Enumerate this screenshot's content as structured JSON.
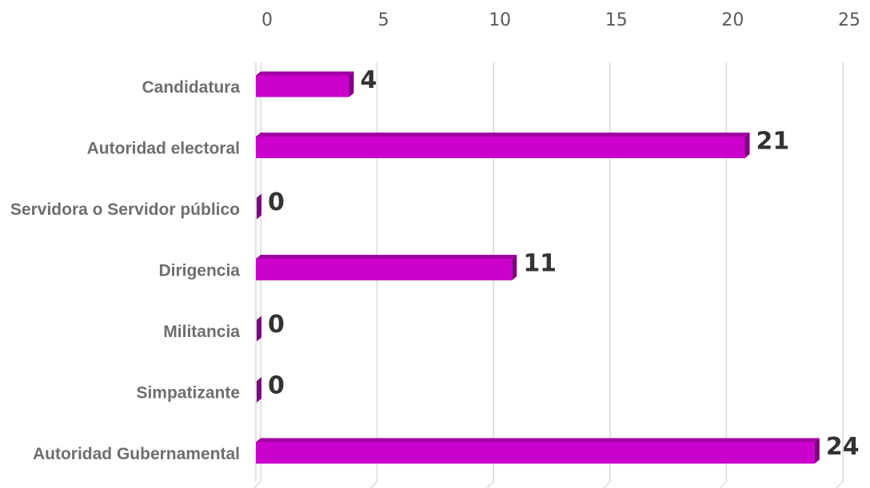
{
  "chart_data": {
    "type": "bar",
    "orientation": "horizontal",
    "title": "",
    "xlabel": "",
    "ylabel": "",
    "categories": [
      "Candidatura",
      "Autoridad electoral",
      "Servidora o Servidor público",
      "Dirigencia",
      "Militancia",
      "Simpatizante",
      "Autoridad Gubernamental"
    ],
    "values": [
      4,
      21,
      0,
      11,
      0,
      0,
      24
    ],
    "xlim": [
      0,
      25
    ],
    "ticks": [
      0,
      5,
      10,
      15,
      20,
      25
    ],
    "tick_labels": [
      "0",
      "5",
      "10",
      "15",
      "20",
      "25"
    ],
    "x_axis_position": "top",
    "grid": true,
    "legend": "none",
    "data_labels": true,
    "colors": {
      "bar_front": "#cc00cc",
      "bar_top": "#a200a2",
      "bar_side": "#7a0a7a",
      "grid": "#d9d9d9",
      "tick_text": "#595959",
      "category_text": "#6e6e6e",
      "value_text": "#333333"
    }
  }
}
